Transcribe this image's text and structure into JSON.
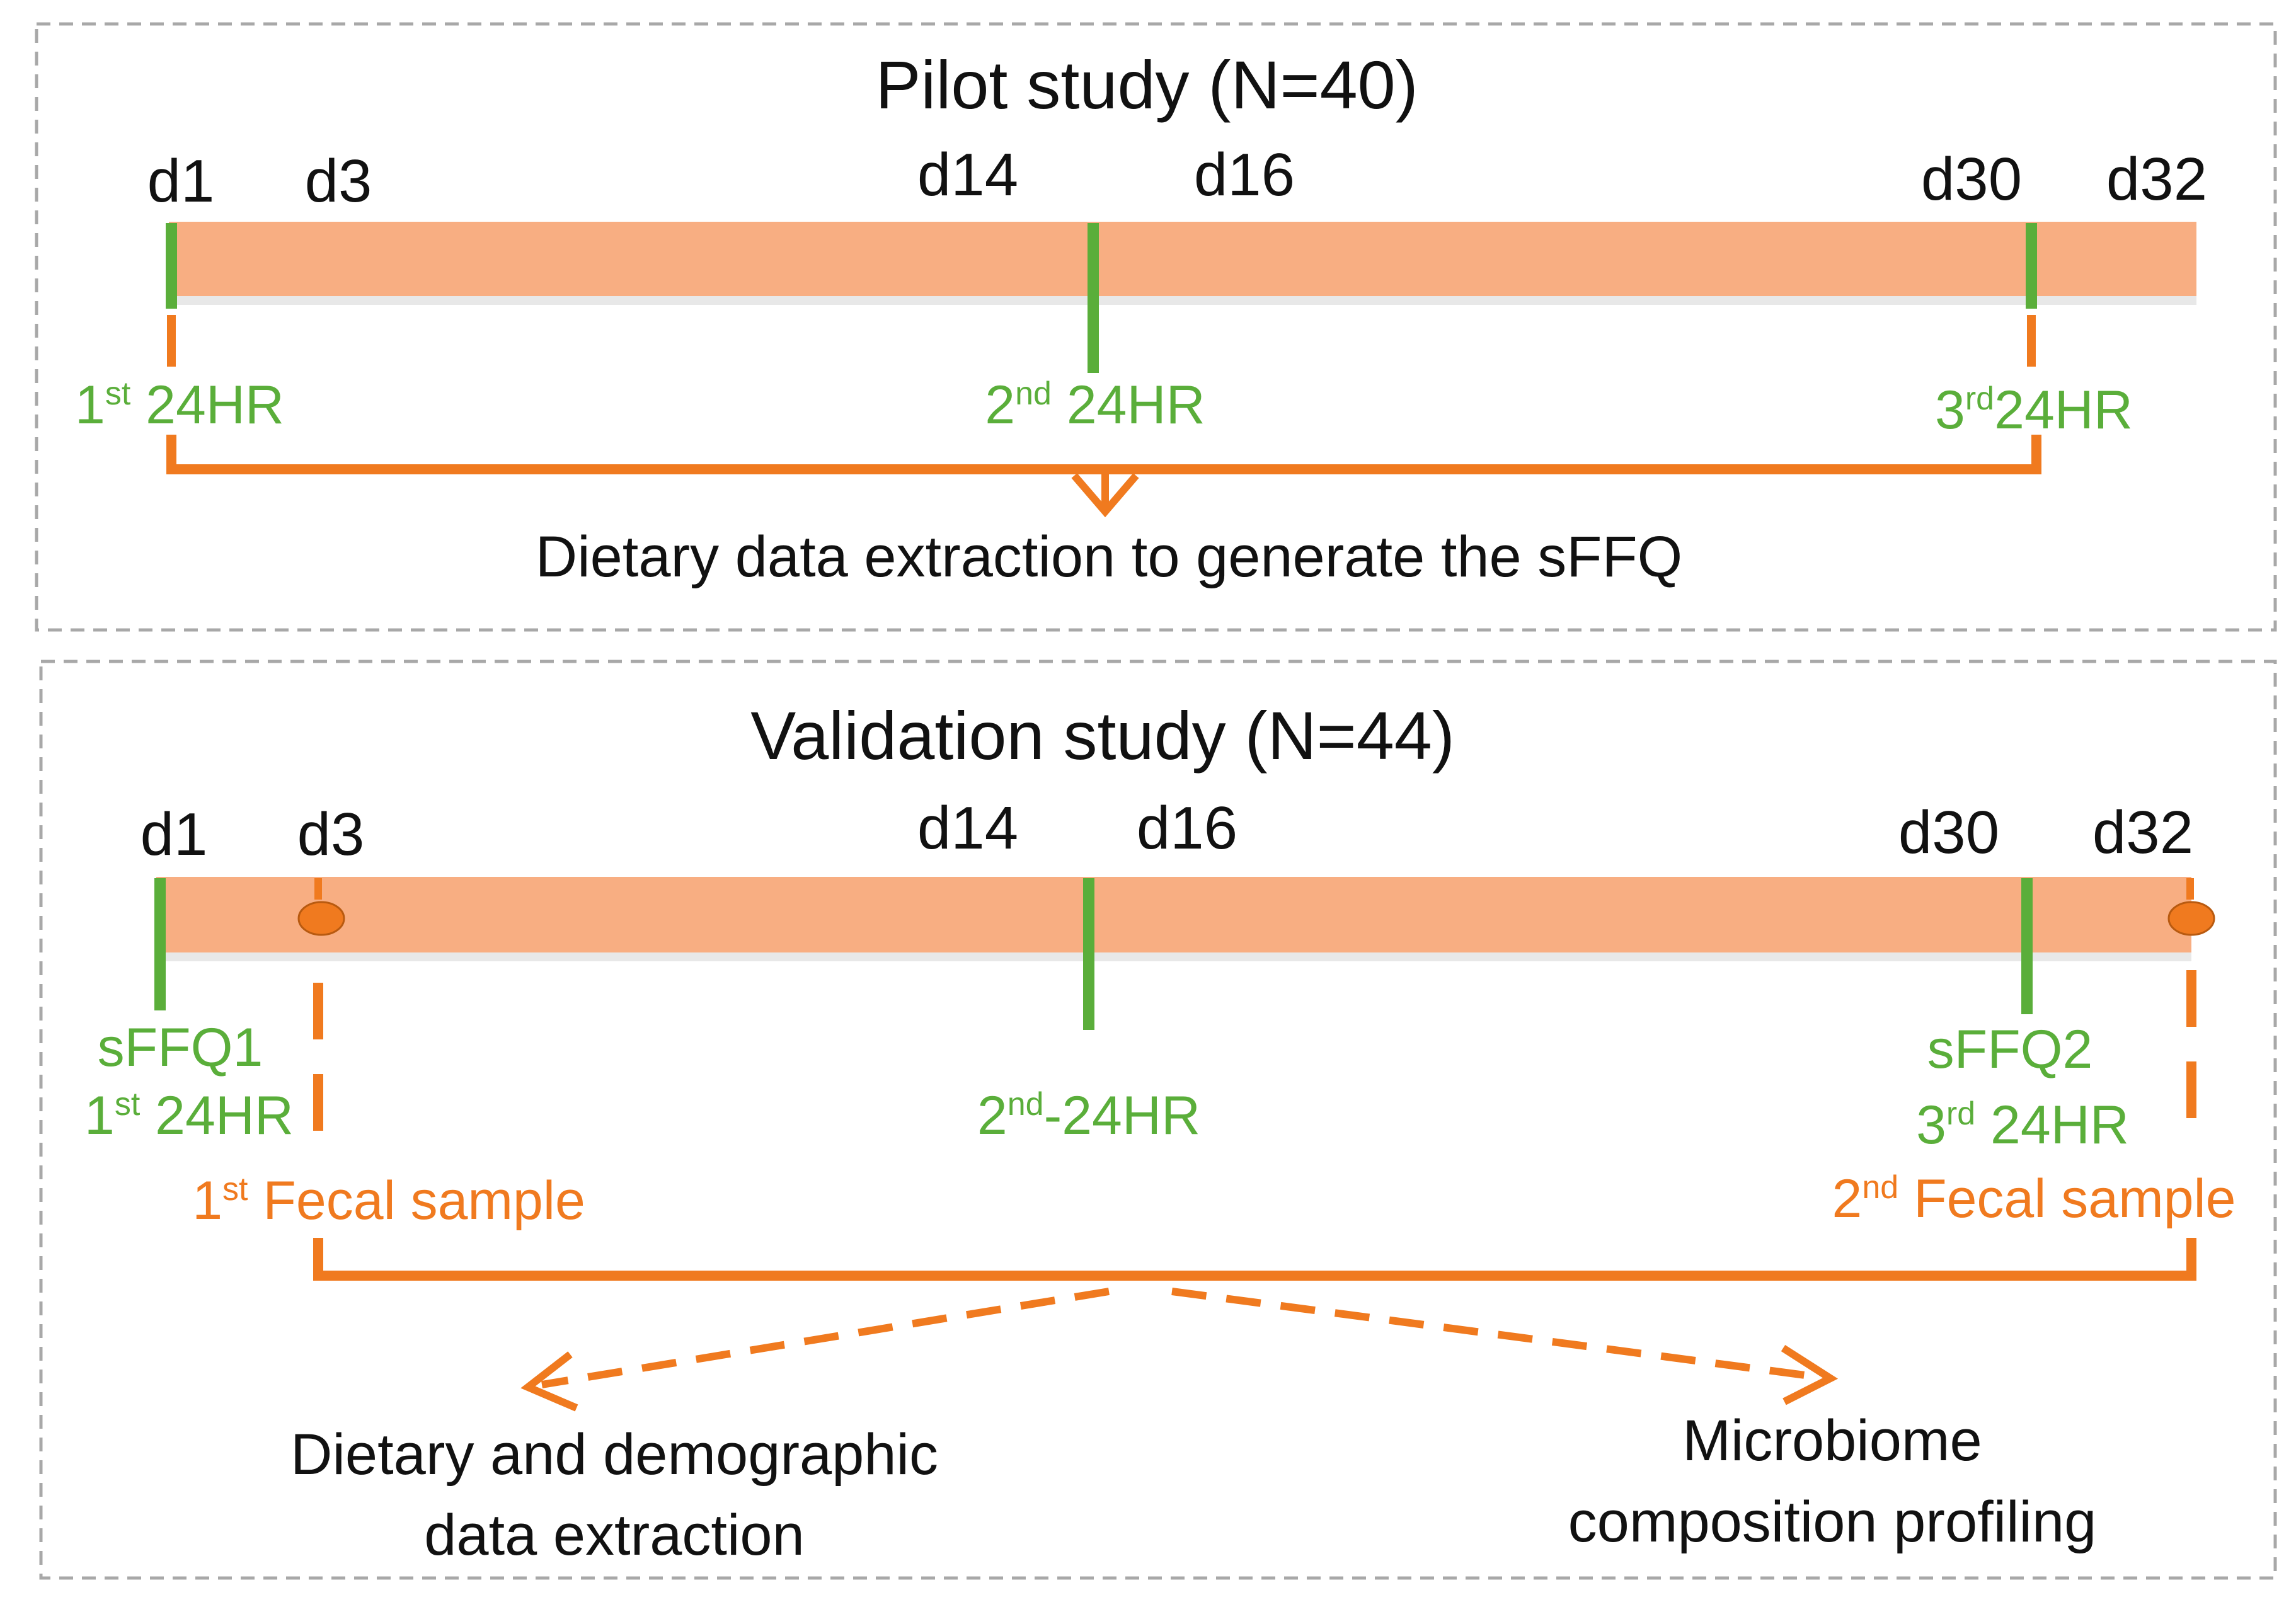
{
  "colors": {
    "bar": "#f8ae82",
    "bar_shadow": "#e8e8e8",
    "green": "#5aae3a",
    "orange": "#f07a1f",
    "border": "#a8a8a8",
    "text": "#111111"
  },
  "pilot": {
    "title": "Pilot study (N=40)",
    "days": [
      "d1",
      "d3",
      "d14",
      "d16",
      "d30",
      "d32"
    ],
    "recall1_num": "1",
    "recall1_sup": "st",
    "recall1_label": " 24HR",
    "recall2_num": "2",
    "recall2_sup": "nd",
    "recall2_label": " 24HR",
    "recall3_num": "3",
    "recall3_sup": "rd",
    "recall3_label": "24HR",
    "outcome": "Dietary data extraction to generate the sFFQ"
  },
  "validation": {
    "title": "Validation study (N=44)",
    "days": [
      "d1",
      "d3",
      "d14",
      "d16",
      "d30",
      "d32"
    ],
    "sffq1": "sFFQ1",
    "recall1_num": "1",
    "recall1_sup": "st",
    "recall1_label": " 24HR",
    "fecal1_num": "1",
    "fecal1_sup": "st",
    "fecal1_label": " Fecal sample",
    "recall2_num": "2",
    "recall2_sup": "nd",
    "recall2_label": "-24HR",
    "sffq2": "sFFQ2",
    "recall3_num": "3",
    "recall3_sup": "rd",
    "recall3_label": " 24HR",
    "fecal2_num": "2",
    "fecal2_sup": "nd",
    "fecal2_label": " Fecal sample",
    "outcome_left_line1": "Dietary and demographic",
    "outcome_left_line2": "data extraction",
    "outcome_right_line1": "Microbiome",
    "outcome_right_line2": "composition profiling"
  }
}
